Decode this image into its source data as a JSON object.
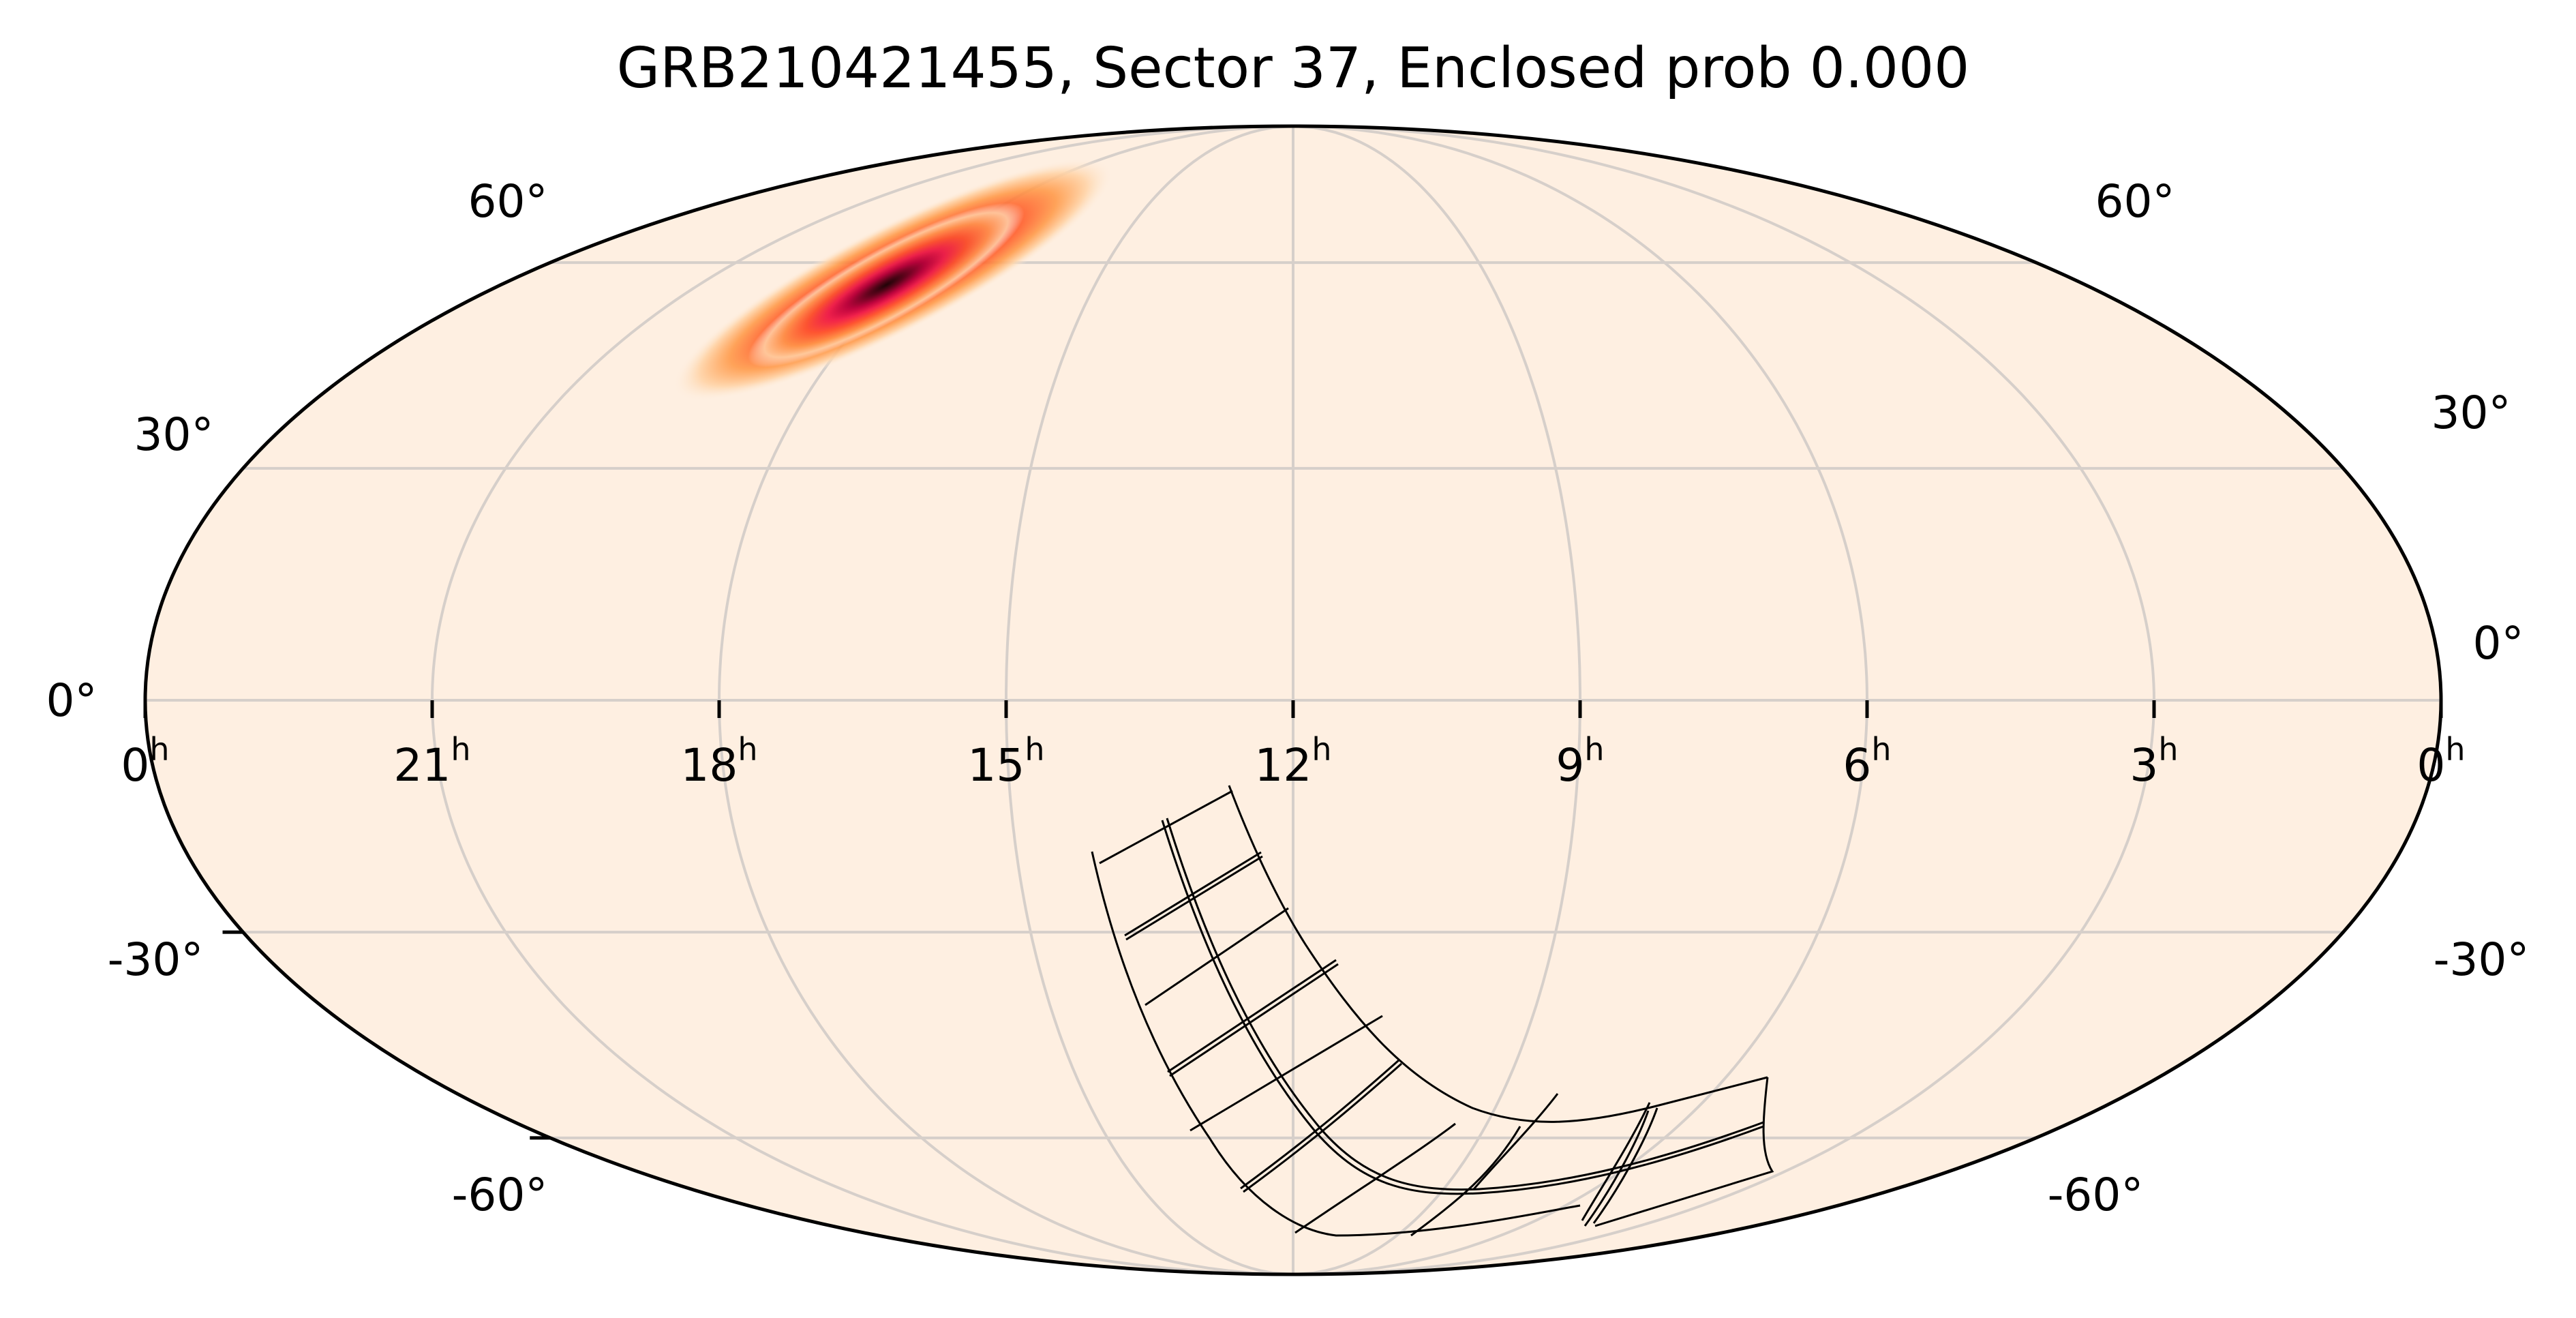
{
  "chart_data": {
    "type": "heatmap",
    "projection": "mollweide",
    "title": "GRB210421455, Sector 37, Enclosed prob 0.000",
    "xlabel": "",
    "ylabel": "",
    "grid": true,
    "legend": null,
    "colormap": "hot-reversed (cream → orange → crimson → black)",
    "background_color": "#FEEFE1",
    "grid_color": "#D6CFCA",
    "ra_ticks": [
      {
        "label": "0",
        "sup": "h",
        "ra_hours": 24
      },
      {
        "label": "21",
        "sup": "h",
        "ra_hours": 21
      },
      {
        "label": "18",
        "sup": "h",
        "ra_hours": 18
      },
      {
        "label": "15",
        "sup": "h",
        "ra_hours": 15
      },
      {
        "label": "12",
        "sup": "h",
        "ra_hours": 12
      },
      {
        "label": "9",
        "sup": "h",
        "ra_hours": 9
      },
      {
        "label": "6",
        "sup": "h",
        "ra_hours": 6
      },
      {
        "label": "3",
        "sup": "h",
        "ra_hours": 3
      },
      {
        "label": "0",
        "sup": "h",
        "ra_hours": 0
      }
    ],
    "dec_ticks_left": [
      "60°",
      "30°",
      "0°",
      "-30°",
      "-60°"
    ],
    "dec_ticks_right": [
      "60°",
      "30°",
      "0°",
      "-30°",
      "-60°"
    ],
    "dec_values": [
      60,
      30,
      0,
      -30,
      -60
    ],
    "xlim_ra_hours": [
      24,
      0
    ],
    "ylim_dec_deg": [
      -90,
      90
    ],
    "localization": {
      "description": "GRB localization probability blob (elongated)",
      "peak_ra_hours": 18.1,
      "peak_dec_deg": 57,
      "orientation": "elongated from lower-left to upper-right",
      "peak_color": "#2B0006",
      "mid_color": "#E8184A",
      "outer_color": "#FF8A3D"
    },
    "footprint": {
      "description": "TESS Sector 37 camera/CCD footprint (4 cameras × 2×2 CCDs = 16 CCDs), curved strip in southern sky",
      "enclosed_probability": 0.0,
      "ccd_rows": 8,
      "ccd_cols": 2
    }
  },
  "labels": {
    "title": "GRB210421455, Sector 37, Enclosed prob 0.000"
  }
}
